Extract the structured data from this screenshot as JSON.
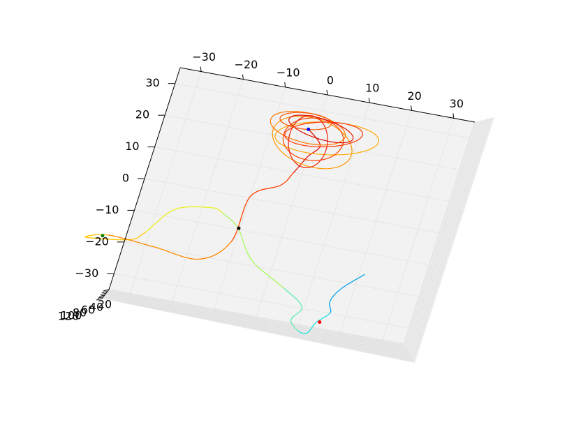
{
  "chart_data": {
    "type": "line3d",
    "title": "",
    "xlabel": "",
    "ylabel": "",
    "zlabel": "",
    "grid": true,
    "x_ticks": [
      "−30",
      "−20",
      "−10",
      "0",
      "10",
      "20",
      "30"
    ],
    "y_ticks": [
      "30",
      "20",
      "10",
      "0",
      "−10",
      "−20",
      "−30"
    ],
    "z_ticks": [
      "20",
      "40",
      "60",
      "80",
      "100",
      "120"
    ],
    "pane_color": "#f2f2f2",
    "grid_color": "#e6e6e6",
    "trajectory": {
      "colormap": "jet",
      "colors": [
        "#0aa5e6",
        "#1fe6e6",
        "#5ff0b0",
        "#a8f858",
        "#e8f020",
        "#ffc400",
        "#ff8a00",
        "#ff4000",
        "#e01000"
      ],
      "points": [
        [
          21.3,
          -16.4
        ],
        [
          17.0,
          -22.0
        ],
        [
          15.4,
          -26.5
        ],
        [
          16.3,
          -29.8
        ],
        [
          13.8,
          -33.4
        ],
        [
          12.6,
          -37.0
        ],
        [
          10.4,
          -36.9
        ],
        [
          8.0,
          -34.0
        ],
        [
          9.5,
          -29.5
        ],
        [
          4.2,
          -25.0
        ],
        [
          -5.0,
          -18.5
        ],
        [
          -10.5,
          -9.6
        ],
        [
          -15.0,
          -6.0
        ],
        [
          -18.0,
          -5.0
        ],
        [
          -26.0,
          -7.5
        ],
        [
          -31.0,
          -16.0
        ],
        [
          -34.0,
          -19.0
        ],
        [
          -44.0,
          -20.7
        ],
        [
          -39.0,
          -18.8
        ],
        [
          -28.0,
          -19.8
        ],
        [
          -17.0,
          -21.0
        ],
        [
          -11.0,
          -14.0
        ],
        [
          -10.0,
          0.5
        ],
        [
          -4.0,
          5.5
        ],
        [
          -2.0,
          10.0
        ],
        [
          0.0,
          15.5
        ],
        [
          2.0,
          19.5
        ],
        [
          -1.5,
          23.5
        ]
      ]
    },
    "loops": [
      {
        "color": "#ff9900",
        "cx": 0.0,
        "cy": 20.0,
        "rx": 10.0,
        "ry": 7.0,
        "rot": -20
      },
      {
        "color": "#ffaa00",
        "cx": 3.0,
        "cy": 22.0,
        "rx": 12.0,
        "ry": 5.0,
        "rot": 10
      },
      {
        "color": "#ff7700",
        "cx": -2.0,
        "cy": 24.0,
        "rx": 9.0,
        "ry": 4.5,
        "rot": -5
      },
      {
        "color": "#ff4400",
        "cx": 0.0,
        "cy": 21.0,
        "rx": 7.0,
        "ry": 6.5,
        "rot": 0
      },
      {
        "color": "#ff3300",
        "cx": 2.0,
        "cy": 23.0,
        "rx": 9.0,
        "ry": 3.8,
        "rot": 15
      },
      {
        "color": "#ee2200",
        "cx": -1.0,
        "cy": 20.0,
        "rx": 4.5,
        "ry": 8.0,
        "rot": 10
      },
      {
        "color": "#dd1100",
        "cx": 1.0,
        "cy": 24.5,
        "rx": 8.0,
        "ry": 3.0,
        "rot": -10
      },
      {
        "color": "#ff5500",
        "cx": -3.0,
        "cy": 26.0,
        "rx": 6.0,
        "ry": 2.5,
        "rot": 5
      }
    ],
    "markers": [
      {
        "name": "blue",
        "color": "#0000ff",
        "x": -1.8,
        "y": 23.7
      },
      {
        "name": "black",
        "color": "#000000",
        "x": -10.3,
        "y": -9.6
      },
      {
        "name": "green",
        "color": "#008000",
        "x": -40.3,
        "y": -19.3
      },
      {
        "name": "red",
        "color": "#ff0000",
        "x": 14.6,
        "y": -33.1
      }
    ]
  }
}
